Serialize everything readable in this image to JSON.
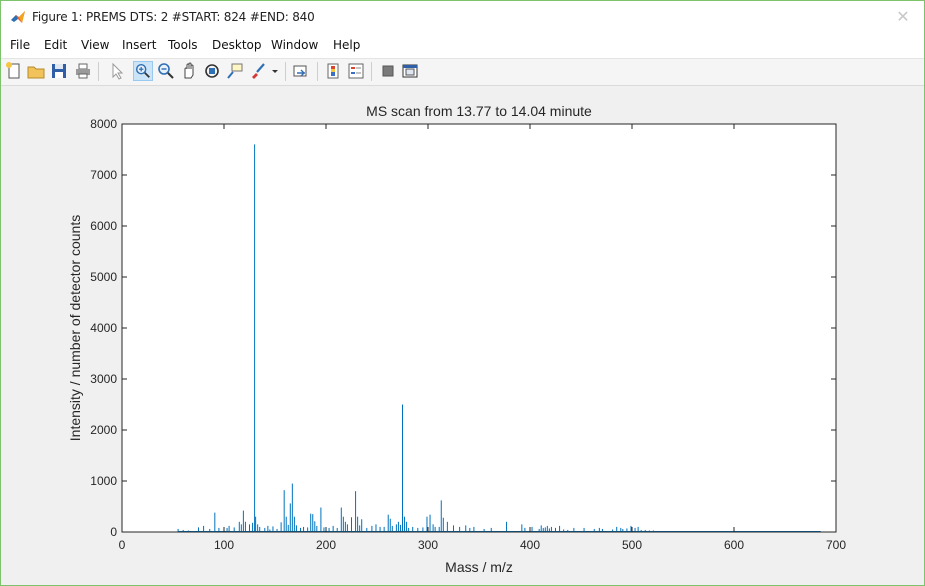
{
  "window": {
    "title": "Figure 1: PREMS DTS: 2 #START: 824 #END: 840",
    "close_symbol": "✕"
  },
  "menu": {
    "items": [
      "File",
      "Edit",
      "View",
      "Insert",
      "Tools",
      "Desktop",
      "Window",
      "Help"
    ]
  },
  "toolbar": {
    "icons": [
      "new-figure-icon",
      "open-file-icon",
      "save-icon",
      "print-icon",
      "edit-plot-icon",
      "zoom-in-icon",
      "zoom-out-icon",
      "pan-icon",
      "rotate-3d-icon",
      "data-cursor-icon",
      "brush-icon",
      "link-plot-icon",
      "insert-colorbar-icon",
      "insert-legend-icon",
      "hide-plot-tools-icon",
      "show-plot-tools-icon"
    ],
    "active": "zoom-in-icon"
  },
  "colors": {
    "line": "#0072bd",
    "axes_bg": "#ffffff",
    "figure_bg": "#f0f0f0",
    "window_border": "#7dc36b"
  },
  "chart_data": {
    "type": "line",
    "title": "MS scan from 13.77 to 14.04 minute",
    "xlabel": "Mass / m/z",
    "ylabel": "Intensity / number of detector counts",
    "xlim": [
      0,
      700
    ],
    "ylim": [
      0,
      8000
    ],
    "xticks": [
      0,
      100,
      200,
      300,
      400,
      500,
      600,
      700
    ],
    "yticks": [
      0,
      1000,
      2000,
      3000,
      4000,
      5000,
      6000,
      7000,
      8000
    ],
    "grid": false,
    "series": [
      {
        "mz": [
          55,
          60,
          65,
          75,
          80,
          86,
          91,
          95,
          100,
          103,
          105,
          110,
          115,
          117,
          119,
          121,
          125,
          128,
          130,
          131,
          133,
          135,
          140,
          143,
          145,
          148,
          152,
          156,
          159,
          161,
          163,
          165,
          167,
          169,
          171,
          175,
          178,
          182,
          185,
          187,
          189,
          191,
          195,
          198,
          203,
          207,
          211,
          215,
          217,
          219,
          221,
          225,
          229,
          231,
          233,
          235,
          240,
          245,
          249,
          253,
          257,
          261,
          263,
          265,
          269,
          271,
          273,
          275,
          277,
          279,
          281,
          285,
          290,
          295,
          299,
          302,
          305,
          307,
          311,
          313,
          315,
          319,
          325,
          331,
          337,
          341,
          345,
          355,
          362,
          377,
          392,
          395,
          402,
          409,
          411,
          413,
          415,
          417,
          419,
          421,
          425,
          429,
          433,
          437,
          443,
          453,
          463,
          468,
          471,
          481,
          485,
          489,
          491,
          495,
          499,
          503,
          506,
          509,
          513,
          517,
          521,
          530,
          545,
          560,
          575,
          590,
          605,
          621,
          645,
          670,
          685
        ],
        "intensity": [
          60,
          40,
          30,
          90,
          120,
          60,
          380,
          80,
          90,
          80,
          120,
          90,
          200,
          150,
          420,
          200,
          150,
          180,
          7600,
          300,
          150,
          100,
          80,
          120,
          50,
          110,
          60,
          190,
          820,
          300,
          140,
          560,
          950,
          300,
          130,
          80,
          100,
          90,
          360,
          350,
          210,
          120,
          480,
          90,
          80,
          120,
          80,
          480,
          300,
          200,
          150,
          290,
          800,
          300,
          130,
          250,
          80,
          120,
          150,
          100,
          100,
          340,
          260,
          120,
          150,
          200,
          140,
          2500,
          300,
          200,
          80,
          100,
          80,
          90,
          300,
          340,
          150,
          100,
          100,
          620,
          280,
          200,
          130,
          100,
          130,
          80,
          100,
          60,
          80,
          200,
          150,
          80,
          100,
          60,
          130,
          80,
          90,
          120,
          70,
          100,
          80,
          120,
          50,
          40,
          80,
          80,
          60,
          80,
          60,
          50,
          100,
          80,
          60,
          70,
          120,
          80,
          100,
          40,
          40,
          30,
          30,
          20,
          20,
          15,
          15,
          10,
          10,
          10,
          8,
          8,
          6
        ]
      }
    ]
  }
}
